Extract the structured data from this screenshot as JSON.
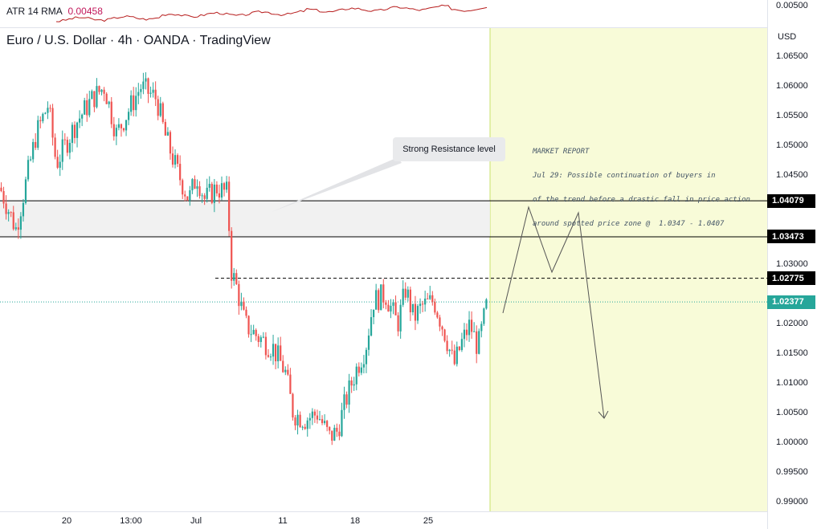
{
  "indicator": {
    "label": "ATR 14 RMA",
    "value": "0.00458"
  },
  "header": {
    "title": "Euro / U.S. Dollar · 4h · OANDA · TradingView",
    "currency": "USD"
  },
  "annotations": {
    "callout": "Strong Resistance level",
    "report_lines": [
      "MARKET REPORT",
      "Jul 29: Possible continuation of buyers in",
      "of the trend before a drastic fall in price action",
      "around spotted price zone @  1.0347 - 1.0407"
    ]
  },
  "price_tags": [
    {
      "label": "1.04079",
      "value": 1.04079,
      "bg": "#000000",
      "fg": "#ffffff"
    },
    {
      "label": "1.03473",
      "value": 1.03473,
      "bg": "#000000",
      "fg": "#ffffff"
    },
    {
      "label": "1.02775",
      "value": 1.02775,
      "bg": "#000000",
      "fg": "#ffffff"
    },
    {
      "label": "1.02377",
      "value": 1.02377,
      "bg": "#26a69a",
      "fg": "#ffffff"
    }
  ],
  "chart_data": {
    "type": "candlestick",
    "ylim": [
      0.988,
      1.0695
    ],
    "y_ticks": [
      "1.06500",
      "1.06000",
      "1.05500",
      "1.05000",
      "1.04500",
      "1.03000",
      "1.02000",
      "1.01500",
      "1.01000",
      "1.00500",
      "1.00000",
      "0.99500",
      "0.99000"
    ],
    "indicator_tick": "0.00500",
    "x_ticks": [
      "20",
      "13:00",
      "Jul",
      "11",
      "18",
      "25"
    ],
    "resistance_zone": [
      1.03473,
      1.04079
    ],
    "level_dashed": 1.02775,
    "last_price": 1.02377,
    "colors": {
      "up": "#26a69a",
      "down": "#ef5350",
      "forecast_zone": "#f8fbd8",
      "atr": "#b71c1c"
    },
    "anchors": [
      [
        0,
        1.043
      ],
      [
        20,
        1.036
      ],
      [
        45,
        1.052
      ],
      [
        60,
        1.057
      ],
      [
        70,
        1.047
      ],
      [
        95,
        1.054
      ],
      [
        115,
        1.058
      ],
      [
        130,
        1.06
      ],
      [
        145,
        1.052
      ],
      [
        160,
        1.056
      ],
      [
        175,
        1.06
      ],
      [
        195,
        1.058
      ],
      [
        205,
        1.052
      ],
      [
        220,
        1.046
      ],
      [
        235,
        1.041
      ],
      [
        245,
        1.045
      ],
      [
        255,
        1.041
      ],
      [
        270,
        1.043
      ],
      [
        283,
        1.042
      ],
      [
        288,
        1.029
      ],
      [
        295,
        1.026
      ],
      [
        305,
        1.02
      ],
      [
        320,
        1.018
      ],
      [
        340,
        1.016
      ],
      [
        355,
        1.012
      ],
      [
        365,
        1.005
      ],
      [
        380,
        1.004
      ],
      [
        395,
        1.005
      ],
      [
        410,
        1.001
      ],
      [
        420,
        1.002
      ],
      [
        430,
        1.007
      ],
      [
        445,
        1.013
      ],
      [
        455,
        1.016
      ],
      [
        465,
        1.024
      ],
      [
        480,
        1.025
      ],
      [
        495,
        1.02
      ],
      [
        505,
        1.026
      ],
      [
        515,
        1.021
      ],
      [
        525,
        1.023
      ],
      [
        540,
        1.024
      ],
      [
        555,
        1.018
      ],
      [
        565,
        1.013
      ],
      [
        575,
        1.017
      ],
      [
        585,
        1.02
      ],
      [
        595,
        1.016
      ],
      [
        607,
        1.024
      ]
    ]
  }
}
